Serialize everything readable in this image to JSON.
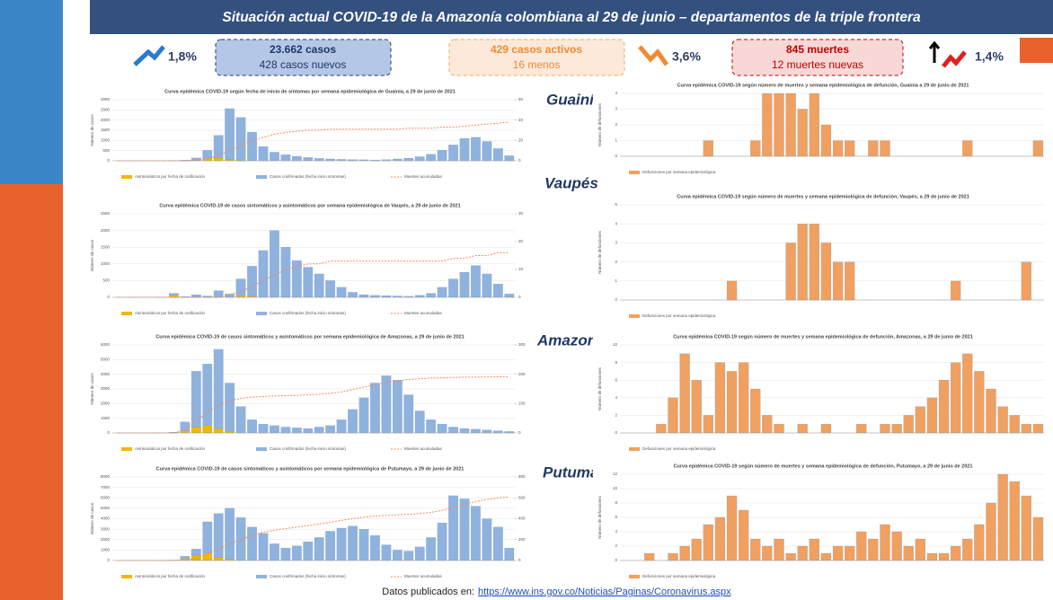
{
  "header": {
    "title": "Situación actual COVID-19 de la Amazonía colombiana al 29 de junio – departamentos de la triple frontera"
  },
  "kpis": {
    "cases_pct": "1,8%",
    "cases": "23.662 casos",
    "new_cases": "428 casos nuevos",
    "active": "429 casos activos",
    "active_change": "16 menos",
    "active_pct": "3,6%",
    "deaths": "845 muertes",
    "new_deaths": "12 muertes nuevas",
    "deaths_pct": "1,4%"
  },
  "departments": [
    "Guainía",
    "Vaupés",
    "Amazonas",
    "Putumayo"
  ],
  "footer": {
    "label": "Datos publicados en:",
    "link": "https://www.ins.gov.co/Noticias/Paginas/Coronavirus.aspx"
  },
  "chart_data": [
    {
      "type": "bar",
      "title": "Curva epidémica COVID-19 según fecha de inicio de síntomas por semana epidemiológica de Guainía, a 29 de junio de 2021",
      "y_label": "Número de casos",
      "ylim": [
        0,
        3000
      ],
      "yticks": [
        0,
        500,
        1000,
        1500,
        2000,
        2500,
        3000
      ],
      "y2lim": [
        0,
        60
      ],
      "y2ticks": [
        0,
        20,
        40,
        60
      ],
      "series": [
        {
          "name": "Asintomáticos por fecha de notificación",
          "color": "#f2b705",
          "values": [
            0,
            0,
            0,
            0,
            0,
            0,
            0,
            20,
            120,
            150,
            60,
            30,
            10,
            0,
            0,
            0,
            0,
            0,
            0,
            0,
            0,
            0,
            0,
            0,
            0,
            0,
            0,
            0,
            0,
            0,
            0,
            0,
            0,
            0,
            0,
            0
          ]
        },
        {
          "name": "Casos confirmados (fecha inicio síntomas)",
          "color": "#8fb2df",
          "values": [
            0,
            0,
            0,
            0,
            2,
            8,
            30,
            120,
            400,
            1100,
            2500,
            2100,
            1400,
            700,
            420,
            300,
            220,
            160,
            120,
            90,
            70,
            60,
            50,
            40,
            60,
            90,
            130,
            200,
            320,
            520,
            780,
            1100,
            1150,
            950,
            600,
            250
          ]
        },
        {
          "name": "Muertes acumuladas",
          "color": "#f08a5d",
          "axis": "y2",
          "values": [
            0,
            0,
            0,
            0,
            0,
            0,
            0,
            1,
            2,
            5,
            10,
            15,
            20,
            23,
            26,
            28,
            29,
            30,
            30,
            31,
            31,
            31,
            31,
            31,
            31,
            31,
            32,
            32,
            32,
            33,
            33,
            34,
            35,
            36,
            37,
            38
          ]
        }
      ]
    },
    {
      "type": "bar",
      "title": "Curva epidémica COVID-19 según número de muertes y semana epidemiológica de defunción, Guainía a 29 de junio de 2021",
      "y_label": "Número de defunciones",
      "ylim": [
        0,
        4
      ],
      "yticks": [
        0,
        1,
        2,
        3,
        4
      ],
      "series": [
        {
          "name": "Defunciones por semana epidemiológica",
          "color": "#f0a060",
          "values": [
            0,
            0,
            0,
            0,
            0,
            0,
            0,
            1,
            0,
            0,
            0,
            1,
            4,
            4,
            4,
            3,
            4,
            2,
            1,
            1,
            0,
            1,
            1,
            0,
            0,
            0,
            0,
            0,
            0,
            1,
            0,
            0,
            0,
            0,
            0,
            1
          ]
        }
      ]
    },
    {
      "type": "bar",
      "title": "Curva epidémica COVID-19 de casos sintomáticos y asintomáticos por semana epidemiológica de Vaupés, a 29 de junio de 2021",
      "y_label": "Número de casos",
      "ylim": [
        0,
        2500
      ],
      "yticks": [
        0,
        500,
        1000,
        1500,
        2000,
        2500
      ],
      "y2lim": [
        0,
        30
      ],
      "y2ticks": [
        0,
        10,
        20,
        30
      ],
      "series": [
        {
          "name": "Asintomáticos por fecha de notificación",
          "color": "#f2b705",
          "values": [
            0,
            0,
            0,
            0,
            0,
            60,
            0,
            0,
            0,
            0,
            0,
            50,
            30,
            0,
            0,
            0,
            0,
            0,
            0,
            0,
            0,
            0,
            0,
            0,
            0,
            0,
            0,
            0,
            0,
            0,
            0,
            0,
            0,
            0,
            0,
            0
          ]
        },
        {
          "name": "Casos confirmados (fecha inicio síntomas)",
          "color": "#8fb2df",
          "values": [
            0,
            0,
            0,
            0,
            10,
            60,
            20,
            80,
            40,
            200,
            100,
            500,
            900,
            1400,
            2000,
            1500,
            1100,
            900,
            700,
            500,
            300,
            150,
            80,
            60,
            50,
            40,
            30,
            60,
            120,
            300,
            550,
            750,
            950,
            700,
            400,
            100
          ]
        },
        {
          "name": "Muertes acumuladas",
          "color": "#f08a5d",
          "axis": "y2",
          "values": [
            0,
            0,
            0,
            0,
            0,
            0,
            0,
            0,
            0,
            0,
            1,
            2,
            4,
            6,
            8,
            10,
            11,
            12,
            12,
            13,
            13,
            13,
            13,
            13,
            13,
            13,
            13,
            13,
            13,
            13,
            14,
            14,
            15,
            15,
            16,
            16
          ]
        }
      ]
    },
    {
      "type": "bar",
      "title": "Curva epidémica COVID-19 según número de muertes y semana epidemiológica de defunción, Vaupés, a 29 de junio de 2021",
      "y_label": "Número de defunciones",
      "ylim": [
        0,
        5
      ],
      "yticks": [
        0,
        1,
        2,
        3,
        4,
        5
      ],
      "series": [
        {
          "name": "Defunciones por semana epidemiológica",
          "color": "#f0a060",
          "values": [
            0,
            0,
            0,
            0,
            0,
            0,
            0,
            0,
            0,
            1,
            0,
            0,
            0,
            0,
            3,
            4,
            4,
            3,
            2,
            2,
            0,
            0,
            0,
            0,
            0,
            0,
            0,
            0,
            1,
            0,
            0,
            0,
            0,
            0,
            2,
            0
          ]
        }
      ]
    },
    {
      "type": "bar",
      "title": "Curva epidémica COVID-19 de casos sintomáticos y asintomáticos por semana epidemiológica de Amazonas, a 29 de junio de 2021",
      "y_label": "Número de casos",
      "ylim": [
        0,
        6000
      ],
      "yticks": [
        0,
        1000,
        2000,
        3000,
        4000,
        5000,
        6000
      ],
      "y2lim": [
        0,
        300
      ],
      "y2ticks": [
        0,
        100,
        200,
        300
      ],
      "series": [
        {
          "name": "Asintomáticos por fecha de notificación",
          "color": "#f2b705",
          "values": [
            0,
            0,
            0,
            0,
            0,
            0,
            150,
            400,
            500,
            300,
            100,
            0,
            0,
            0,
            0,
            0,
            0,
            0,
            0,
            0,
            0,
            0,
            0,
            0,
            0,
            0,
            0,
            0,
            0,
            0,
            0,
            0,
            0,
            0,
            0,
            0
          ]
        },
        {
          "name": "Casos confirmados (fecha inicio síntomas)",
          "color": "#8fb2df",
          "values": [
            0,
            0,
            0,
            0,
            0,
            50,
            600,
            3800,
            4200,
            5400,
            3300,
            1800,
            900,
            600,
            500,
            400,
            350,
            300,
            400,
            500,
            900,
            1600,
            2400,
            3400,
            3900,
            3600,
            2600,
            1500,
            900,
            600,
            400,
            300,
            250,
            200,
            150,
            100
          ]
        },
        {
          "name": "Muertes acumuladas",
          "color": "#f08a5d",
          "axis": "y2",
          "values": [
            0,
            0,
            0,
            0,
            0,
            0,
            10,
            40,
            70,
            95,
            110,
            118,
            122,
            124,
            126,
            127,
            128,
            130,
            132,
            135,
            140,
            148,
            156,
            165,
            172,
            178,
            182,
            185,
            187,
            188,
            189,
            190,
            190,
            191,
            191,
            192
          ]
        }
      ]
    },
    {
      "type": "bar",
      "title": "Curva epidémica COVID-19 según número de muertes y semana epidemiológica de defunción, Amazonas, a 29 de junio de 2021",
      "y_label": "Número de defunciones",
      "ylim": [
        0,
        10
      ],
      "yticks": [
        0,
        2,
        4,
        6,
        8,
        10
      ],
      "series": [
        {
          "name": "Defunciones por semana epidemiológica",
          "color": "#f0a060",
          "values": [
            0,
            0,
            0,
            1,
            4,
            9,
            6,
            2,
            8,
            7,
            8,
            5,
            2,
            1,
            0,
            1,
            0,
            1,
            0,
            0,
            1,
            0,
            1,
            1,
            2,
            3,
            4,
            6,
            8,
            9,
            7,
            5,
            3,
            2,
            1,
            1
          ]
        }
      ]
    },
    {
      "type": "bar",
      "title": "Curva epidémica COVID-19 de casos sintomáticos y asintomáticos por semana epidemiológica de Putumayo, a 29 de junio de 2021",
      "y_label": "Número de casos",
      "ylim": [
        0,
        8000
      ],
      "yticks": [
        0,
        1000,
        2000,
        3000,
        4000,
        5000,
        6000,
        7000,
        8000
      ],
      "y2lim": [
        0,
        800
      ],
      "y2ticks": [
        0,
        200,
        400,
        600,
        800
      ],
      "series": [
        {
          "name": "Asintomáticos por fecha de notificación",
          "color": "#f2b705",
          "values": [
            0,
            0,
            0,
            0,
            0,
            0,
            200,
            500,
            700,
            300,
            100,
            0,
            0,
            0,
            0,
            0,
            0,
            0,
            0,
            0,
            0,
            0,
            0,
            0,
            0,
            0,
            0,
            0,
            0,
            0,
            0,
            0,
            0,
            0,
            0,
            0
          ]
        },
        {
          "name": "Casos confirmados (fecha inicio síntomas)",
          "color": "#8fb2df",
          "values": [
            0,
            0,
            0,
            0,
            10,
            30,
            200,
            600,
            3000,
            4200,
            4900,
            4100,
            3200,
            2600,
            1600,
            1200,
            1400,
            1800,
            2200,
            2800,
            3100,
            3300,
            3000,
            2400,
            1500,
            1000,
            900,
            1300,
            2200,
            3600,
            6200,
            5900,
            5200,
            4000,
            3200,
            1200
          ]
        },
        {
          "name": "Muertes acumuladas",
          "color": "#f08a5d",
          "axis": "y2",
          "values": [
            0,
            0,
            0,
            0,
            0,
            2,
            5,
            20,
            60,
            110,
            160,
            200,
            240,
            270,
            290,
            305,
            320,
            335,
            350,
            365,
            385,
            400,
            415,
            425,
            432,
            438,
            442,
            450,
            460,
            480,
            510,
            540,
            565,
            585,
            600,
            610
          ]
        }
      ]
    },
    {
      "type": "bar",
      "title": "Curva epidémica COVID-19 según número de muertes y semana epidemiológica de defunción, Putumayo, a 29 de junio de 2021",
      "y_label": "Número de defunciones",
      "ylim": [
        0,
        12
      ],
      "yticks": [
        0,
        2,
        4,
        6,
        8,
        10,
        12
      ],
      "series": [
        {
          "name": "Defunciones por semana epidemiológica",
          "color": "#f0a060",
          "values": [
            0,
            0,
            1,
            0,
            1,
            2,
            3,
            5,
            6,
            9,
            7,
            3,
            2,
            3,
            1,
            2,
            3,
            1,
            2,
            2,
            4,
            3,
            5,
            4,
            2,
            3,
            1,
            1,
            2,
            3,
            5,
            8,
            12,
            11,
            9,
            6
          ]
        }
      ]
    }
  ]
}
